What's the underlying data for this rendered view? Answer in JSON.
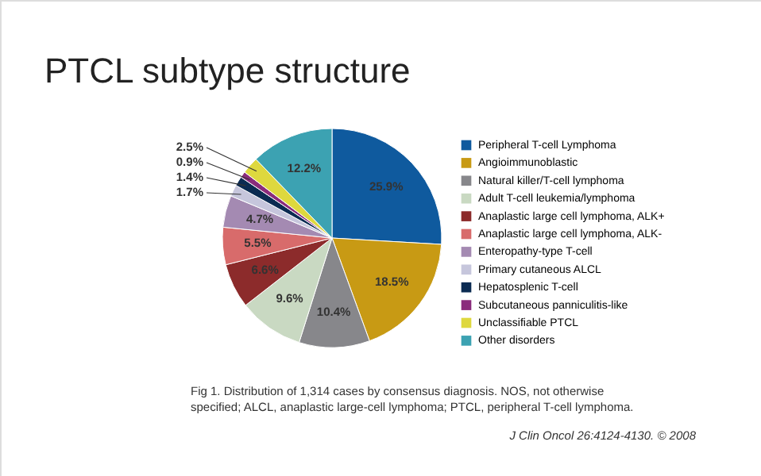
{
  "chart_data": {
    "type": "pie",
    "title": "PTCL subtype structure",
    "categories": [
      "Peripheral T-cell Lymphoma",
      "Angioimmunoblastic",
      "Natural killer/T-cell lymphoma",
      "Adult T-cell leukemia/lymphoma",
      "Anaplastic large cell lymphoma, ALK+",
      "Anaplastic large cell lymphoma, ALK-",
      "Enteropathy-type T-cell",
      "Primary cutaneous ALCL",
      "Hepatosplenic T-cell",
      "Subcutaneous panniculitis-like",
      "Unclassifiable PTCL",
      "Other disorders"
    ],
    "values": [
      25.9,
      18.5,
      10.4,
      9.6,
      6.6,
      5.5,
      4.7,
      1.7,
      1.4,
      0.9,
      2.5,
      12.2
    ],
    "value_labels": [
      "25.9%",
      "18.5%",
      "10.4%",
      "9.6%",
      "6.6%",
      "5.5%",
      "4.7%",
      "1.7%",
      "1.4%",
      "0.9%",
      "2.5%",
      "12.2%"
    ],
    "colors": [
      "#0f5a9e",
      "#c89a14",
      "#87878b",
      "#c9d9c2",
      "#8c2b2b",
      "#d86b6b",
      "#a48ab2",
      "#c6c6dc",
      "#0b2b52",
      "#8a2c7c",
      "#ded83e",
      "#3ca2b2"
    ],
    "legend": "right",
    "annotations": [
      "Fig 1. Distribution of 1,314 cases by consensus diagnosis. NOS, not otherwise specified; ALCL, anaplastic large-cell lymphoma; PTCL, peripheral T-cell lymphoma.",
      "J Clin Oncol 26:4124-4130. © 2008"
    ]
  }
}
